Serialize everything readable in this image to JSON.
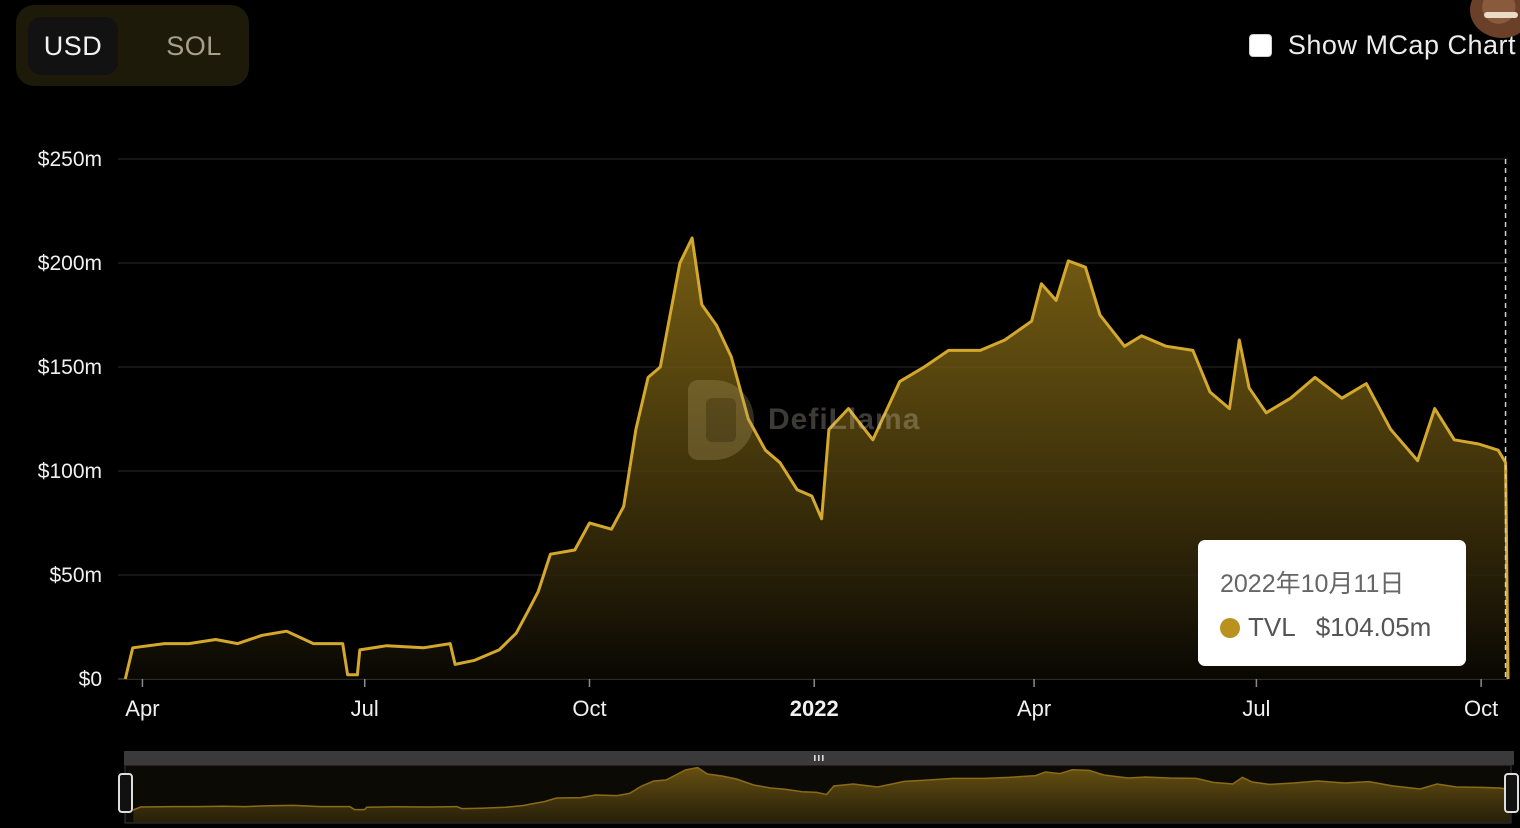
{
  "toggle": {
    "active": "USD",
    "inactive": "SOL"
  },
  "mcap_label": "Show MCap Chart",
  "watermark": "DefiLlama",
  "tooltip": {
    "date": "2022年10月11日",
    "series": "TVL",
    "value": "$104.05m"
  },
  "colors": {
    "line": "#d4a82c",
    "tooltip_dot": "#b8911f",
    "background": "#000000"
  },
  "chart_data": {
    "type": "area",
    "series": [
      {
        "name": "TVL",
        "points": [
          [
            "2021-03-25",
            0
          ],
          [
            "2021-03-28",
            15
          ],
          [
            "2021-04-10",
            17
          ],
          [
            "2021-04-20",
            17
          ],
          [
            "2021-05-01",
            19
          ],
          [
            "2021-05-10",
            17
          ],
          [
            "2021-05-20",
            21
          ],
          [
            "2021-05-30",
            23
          ],
          [
            "2021-06-10",
            17
          ],
          [
            "2021-06-22",
            17
          ],
          [
            "2021-06-24",
            2
          ],
          [
            "2021-06-28",
            2
          ],
          [
            "2021-06-29",
            14
          ],
          [
            "2021-07-10",
            16
          ],
          [
            "2021-07-25",
            15
          ],
          [
            "2021-08-05",
            17
          ],
          [
            "2021-08-07",
            7
          ],
          [
            "2021-08-15",
            9
          ],
          [
            "2021-08-25",
            14
          ],
          [
            "2021-09-01",
            22
          ],
          [
            "2021-09-06",
            33
          ],
          [
            "2021-09-10",
            42
          ],
          [
            "2021-09-15",
            60
          ],
          [
            "2021-09-25",
            62
          ],
          [
            "2021-10-01",
            75
          ],
          [
            "2021-10-10",
            72
          ],
          [
            "2021-10-15",
            83
          ],
          [
            "2021-10-20",
            120
          ],
          [
            "2021-10-25",
            145
          ],
          [
            "2021-10-30",
            150
          ],
          [
            "2021-11-03",
            175
          ],
          [
            "2021-11-07",
            200
          ],
          [
            "2021-11-12",
            212
          ],
          [
            "2021-11-16",
            180
          ],
          [
            "2021-11-22",
            170
          ],
          [
            "2021-11-28",
            155
          ],
          [
            "2021-12-05",
            125
          ],
          [
            "2021-12-12",
            110
          ],
          [
            "2021-12-18",
            104
          ],
          [
            "2021-12-25",
            91
          ],
          [
            "2021-12-31",
            88
          ],
          [
            "2022-01-04",
            77
          ],
          [
            "2022-01-07",
            120
          ],
          [
            "2022-01-15",
            130
          ],
          [
            "2022-01-25",
            115
          ],
          [
            "2022-02-05",
            143
          ],
          [
            "2022-02-15",
            150
          ],
          [
            "2022-02-25",
            158
          ],
          [
            "2022-03-10",
            158
          ],
          [
            "2022-03-20",
            163
          ],
          [
            "2022-03-31",
            172
          ],
          [
            "2022-04-04",
            190
          ],
          [
            "2022-04-10",
            182
          ],
          [
            "2022-04-15",
            201
          ],
          [
            "2022-04-22",
            198
          ],
          [
            "2022-04-28",
            175
          ],
          [
            "2022-05-08",
            160
          ],
          [
            "2022-05-15",
            165
          ],
          [
            "2022-05-25",
            160
          ],
          [
            "2022-06-05",
            158
          ],
          [
            "2022-06-12",
            138
          ],
          [
            "2022-06-20",
            130
          ],
          [
            "2022-06-24",
            163
          ],
          [
            "2022-06-28",
            140
          ],
          [
            "2022-07-05",
            128
          ],
          [
            "2022-07-15",
            135
          ],
          [
            "2022-07-25",
            145
          ],
          [
            "2022-08-05",
            135
          ],
          [
            "2022-08-15",
            142
          ],
          [
            "2022-08-25",
            120
          ],
          [
            "2022-09-05",
            105
          ],
          [
            "2022-09-12",
            130
          ],
          [
            "2022-09-20",
            115
          ],
          [
            "2022-09-30",
            113
          ],
          [
            "2022-10-08",
            110
          ],
          [
            "2022-10-11",
            104.05
          ],
          [
            "2022-10-12",
            0
          ]
        ]
      }
    ],
    "ylim": [
      0,
      250
    ],
    "yticks": [
      "$0",
      "$50m",
      "$100m",
      "$150m",
      "$200m",
      "$250m"
    ],
    "ytick_values": [
      0,
      50,
      100,
      150,
      200,
      250
    ],
    "xticks": [
      {
        "label": "Apr",
        "date": "2021-04-01",
        "bold": false
      },
      {
        "label": "Jul",
        "date": "2021-07-01",
        "bold": false
      },
      {
        "label": "Oct",
        "date": "2021-10-01",
        "bold": false
      },
      {
        "label": "2022",
        "date": "2022-01-01",
        "bold": true
      },
      {
        "label": "Apr",
        "date": "2022-04-01",
        "bold": false
      },
      {
        "label": "Jul",
        "date": "2022-07-01",
        "bold": false
      },
      {
        "label": "Oct",
        "date": "2022-10-01",
        "bold": false
      }
    ],
    "xlim": [
      "2021-03-22",
      "2022-10-12"
    ],
    "grid": true,
    "legend": "none"
  }
}
